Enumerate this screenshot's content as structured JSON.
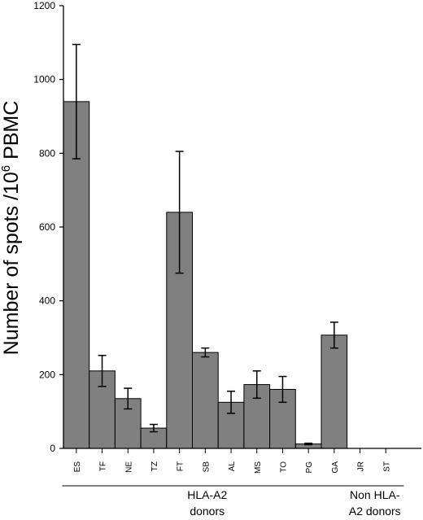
{
  "chart_data": {
    "type": "bar",
    "ylabel_prefix": "Number of spots /10",
    "ylabel_exponent": "6",
    "ylabel_suffix": " PBMC",
    "ylim": [
      0,
      1200
    ],
    "yticks": [
      0,
      200,
      400,
      600,
      800,
      1000,
      1200
    ],
    "bar_color": "#808080",
    "categories": [
      "ES",
      "TF",
      "NE",
      "TZ",
      "FT",
      "SB",
      "AL",
      "MS",
      "TO",
      "PG",
      "GA",
      "JR",
      "ST"
    ],
    "values": [
      940,
      210,
      135,
      55,
      640,
      260,
      125,
      173,
      160,
      12,
      307,
      0,
      0
    ],
    "errors": [
      155,
      42,
      28,
      10,
      165,
      12,
      30,
      37,
      35,
      2,
      35,
      0,
      0
    ],
    "groups": [
      {
        "line1": "HLA-A2",
        "line2": "donors",
        "start": 0,
        "end": 10
      },
      {
        "line1": "Non HLA-",
        "line2": "A2 donors",
        "start": 11,
        "end": 12
      }
    ]
  }
}
